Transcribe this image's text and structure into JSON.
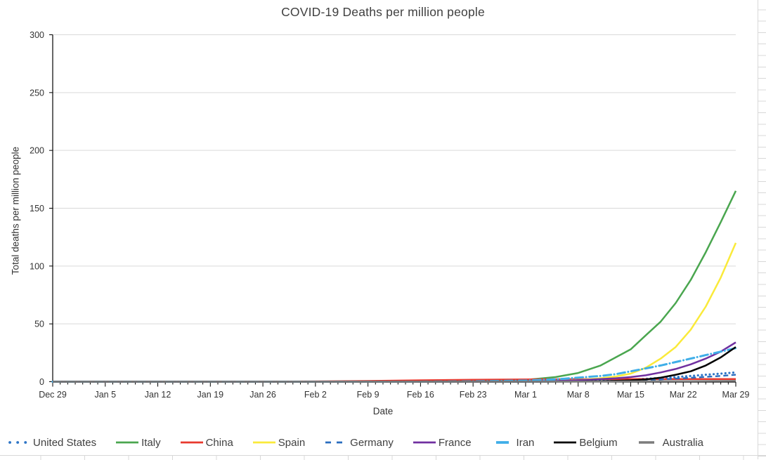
{
  "chart_data": {
    "type": "line",
    "title": "COVID-19 Deaths per million people",
    "xlabel": "Date",
    "ylabel": "Total deaths per million people",
    "ylim": [
      0,
      300
    ],
    "yticks": [
      0,
      50,
      100,
      150,
      200,
      250,
      300
    ],
    "x_tick_labels": [
      "Dec 29",
      "Jan 5",
      "Jan 12",
      "Jan 19",
      "Jan 26",
      "Feb 2",
      "Feb 9",
      "Feb 16",
      "Feb 23",
      "Mar 1",
      "Mar 8",
      "Mar 15",
      "Mar 22",
      "Mar 29"
    ],
    "x_major_tick_every_days": 7,
    "x_minor_tick_every_days": 1,
    "x_range_days": 91,
    "grid": "horizontal-only",
    "legend_position": "bottom",
    "days": [
      0,
      7,
      14,
      21,
      28,
      35,
      42,
      49,
      56,
      63,
      67,
      70,
      73,
      75,
      77,
      79,
      81,
      83,
      85,
      87,
      89,
      91
    ],
    "series": [
      {
        "name": "United States",
        "color": "#2E75C6",
        "style": "dotted",
        "legend": "dots",
        "values": [
          0,
          0,
          0,
          0,
          0,
          0,
          0,
          0,
          0.05,
          0.15,
          0.3,
          0.5,
          0.8,
          1.2,
          1.8,
          2.5,
          3.3,
          4,
          5,
          6,
          7,
          8
        ]
      },
      {
        "name": "Italy",
        "color": "#4AA64F",
        "style": "solid",
        "legend": "line",
        "values": [
          0,
          0,
          0,
          0,
          0,
          0,
          0,
          0.01,
          0.3,
          1.5,
          4,
          7.5,
          14,
          21,
          28,
          40,
          52,
          68,
          88,
          112,
          138,
          165
        ]
      },
      {
        "name": "China",
        "color": "#E8392E",
        "style": "solid",
        "legend": "line",
        "values": [
          0,
          0,
          0,
          0.02,
          0.06,
          0.25,
          0.63,
          1.2,
          1.7,
          2,
          2.1,
          2.2,
          2.25,
          2.3,
          2.3,
          2.3,
          2.3,
          2.3,
          2.3,
          2.3,
          2.3,
          2.3
        ]
      },
      {
        "name": "Spain",
        "color": "#FAEA3A",
        "style": "solid",
        "legend": "line",
        "values": [
          0,
          0,
          0,
          0,
          0,
          0,
          0,
          0,
          0.01,
          0.2,
          0.8,
          1.5,
          3,
          4.5,
          7,
          12,
          20,
          30,
          45,
          65,
          90,
          120
        ]
      },
      {
        "name": "Germany",
        "color": "#2A6DBF",
        "style": "dashed",
        "legend": "dash2",
        "values": [
          0,
          0,
          0,
          0,
          0,
          0,
          0,
          0,
          0,
          0.02,
          0.1,
          0.2,
          0.4,
          0.7,
          1,
          1.5,
          2,
          2.7,
          3.4,
          4.2,
          5,
          6
        ]
      },
      {
        "name": "France",
        "color": "#7030A0",
        "style": "solid",
        "legend": "line",
        "values": [
          0,
          0,
          0,
          0,
          0,
          0,
          0,
          0,
          0.02,
          0.3,
          0.6,
          1.3,
          2.3,
          3,
          4,
          5.5,
          8,
          11,
          15,
          20,
          26,
          34
        ]
      },
      {
        "name": "Iran",
        "color": "#3FAEE8",
        "style": "dashdot",
        "legend": "shortdash",
        "values": [
          0,
          0,
          0,
          0,
          0,
          0,
          0,
          0.03,
          0.3,
          1,
          2,
          3.5,
          5,
          6.5,
          9,
          11.5,
          14,
          17,
          20,
          23,
          26,
          29
        ]
      },
      {
        "name": "Belgium",
        "color": "#000000",
        "style": "solid",
        "legend": "line",
        "values": [
          0,
          0,
          0,
          0,
          0,
          0,
          0,
          0,
          0,
          0.01,
          0.05,
          0.2,
          0.5,
          0.8,
          1.2,
          2,
          3.5,
          6,
          9,
          14,
          21,
          30
        ]
      },
      {
        "name": "Australia",
        "color": "#7C7C7C",
        "style": "solid",
        "legend": "shortline",
        "values": [
          0,
          0,
          0,
          0,
          0,
          0,
          0,
          0,
          0,
          0.08,
          0.1,
          0.15,
          0.2,
          0.25,
          0.3,
          0.35,
          0.4,
          0.45,
          0.5,
          0.55,
          0.6,
          0.65
        ]
      }
    ]
  },
  "colors": {
    "gridline": "#D9D9D9",
    "axis": "#000000",
    "tick_label": "#333333",
    "title_text": "#404040",
    "legend_text": "#404040",
    "spreadsheet_grid": "#D8D8D8"
  }
}
